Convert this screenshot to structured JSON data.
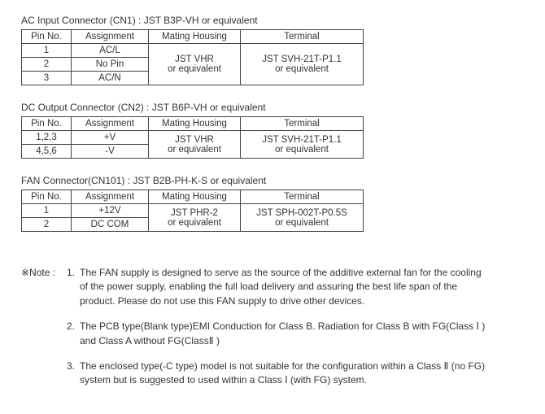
{
  "sections": [
    {
      "title": "AC Input Connector (CN1) : JST B3P-VH or equivalent",
      "headers": [
        "Pin No.",
        "Assignment",
        "Mating Housing",
        "Terminal"
      ],
      "rows": [
        {
          "pin": "1",
          "assign": "AC/L"
        },
        {
          "pin": "2",
          "assign": "No Pin"
        },
        {
          "pin": "3",
          "assign": "AC/N"
        }
      ],
      "mating": "JST VHR\nor equivalent",
      "terminal": "JST SVH-21T-P1.1\nor equivalent"
    },
    {
      "title": "DC Output Connector (CN2) : JST B6P-VH or equivalent",
      "headers": [
        "Pin No.",
        "Assignment",
        "Mating Housing",
        "Terminal"
      ],
      "rows": [
        {
          "pin": "1,2,3",
          "assign": "+V"
        },
        {
          "pin": "4,5,6",
          "assign": "-V"
        }
      ],
      "mating": "JST VHR\nor equivalent",
      "terminal": "JST SVH-21T-P1.1\nor equivalent"
    },
    {
      "title": "FAN Connector(CN101) :  JST B2B-PH-K-S or equivalent",
      "headers": [
        "Pin No.",
        "Assignment",
        "Mating Housing",
        "Terminal"
      ],
      "rows": [
        {
          "pin": "1",
          "assign": "+12V"
        },
        {
          "pin": "2",
          "assign": "DC COM"
        }
      ],
      "mating": "JST PHR-2\nor equivalent",
      "terminal": "JST SPH-002T-P0.5S\nor equivalent"
    }
  ],
  "notes": {
    "lead": "※Note : ",
    "items": [
      {
        "num": "1.",
        "text": "The FAN supply is designed to serve as the source of the additive external fan for the cooling of the power supply, enabling the full load delivery and assuring the best life span of the product. Please do not use this FAN supply to drive other devices."
      },
      {
        "num": "2.",
        "text": "The PCB type(Blank type)EMI Conduction for Class B. Radiation for Class B with FG(Class Ⅰ ) and Class A without FG(ClassⅡ )"
      },
      {
        "num": "3.",
        "text": "The enclosed type(-C type) model is not suitable for the configuration within a Class  Ⅱ (no FG) system but is suggested to used within a Class Ⅰ (with FG) system."
      }
    ]
  }
}
